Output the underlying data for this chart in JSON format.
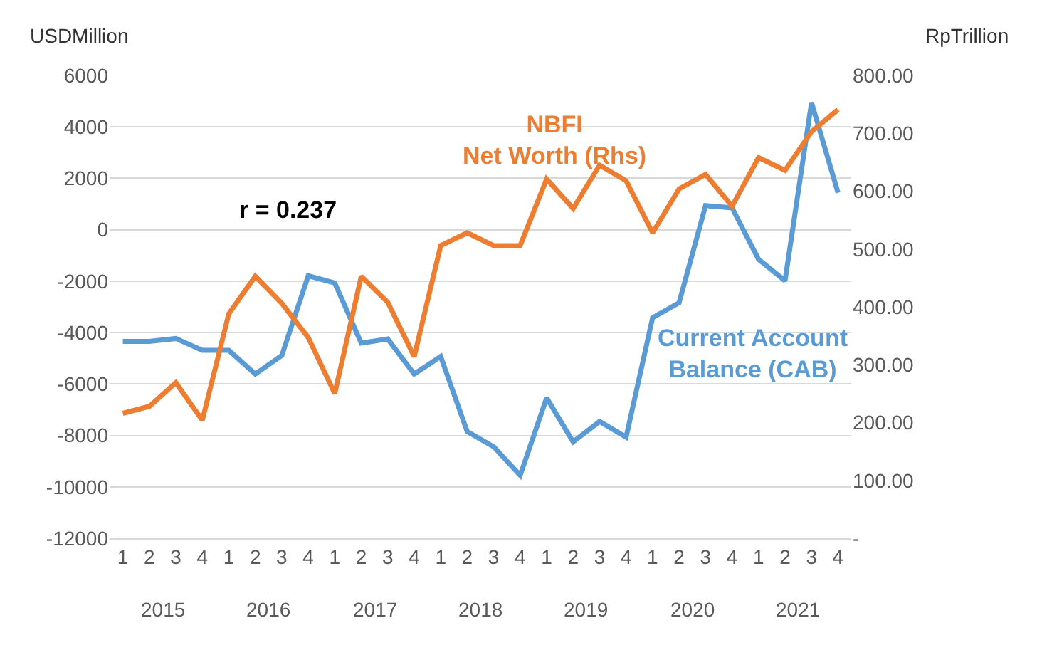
{
  "chart_data": {
    "type": "line",
    "ylabel": "USDMillion",
    "y2label": "RpTrillion",
    "categories": [
      "1",
      "2",
      "3",
      "4",
      "1",
      "2",
      "3",
      "4",
      "1",
      "2",
      "3",
      "4",
      "1",
      "2",
      "3",
      "4",
      "1",
      "2",
      "3",
      "4",
      "1",
      "2",
      "3",
      "4",
      "1",
      "2",
      "3",
      "4"
    ],
    "series": [
      {
        "name": "Current Account\nBalance (CAB)",
        "color": "#5b9bd5",
        "values": [
          -4340,
          -4340,
          -4230,
          -4690,
          -4690,
          -5610,
          -4890,
          -1790,
          -2070,
          -4410,
          -4250,
          -5610,
          -4930,
          -7850,
          -8440,
          -9550,
          -6540,
          -8250,
          -7460,
          -8070,
          -3420,
          -2840,
          940,
          850,
          -1150,
          -1980,
          4950,
          1440
        ]
      },
      {
        "name": "NBFI\nNet Worth (Rhs)",
        "color": "#ed7d31",
        "axis": "y2",
        "values": [
          216,
          228,
          269,
          204,
          388,
          453,
          406,
          347,
          250,
          453,
          408,
          314,
          506,
          528,
          506,
          506,
          621,
          570,
          645,
          618,
          528,
          604,
          629,
          574,
          658,
          636,
          703,
          741
        ]
      }
    ],
    "ylim": [
      -12000,
      6000
    ],
    "yticks": [
      -12000,
      -10000,
      -8000,
      -6000,
      -4000,
      -2000,
      0,
      2000,
      4000,
      6000
    ],
    "y2lim": [
      0,
      800
    ],
    "y2ticks": [
      {
        "value": 0,
        "label": "-"
      },
      {
        "value": 100,
        "label": "100.00"
      },
      {
        "value": 200,
        "label": "200.00"
      },
      {
        "value": 300,
        "label": "300.00"
      },
      {
        "value": 400,
        "label": "400.00"
      },
      {
        "value": 500,
        "label": "500.00"
      },
      {
        "value": 600,
        "label": "600.00"
      },
      {
        "value": 700,
        "label": "700.00"
      },
      {
        "value": 800,
        "label": "800.00"
      }
    ],
    "annotations": [
      "r = 0.237",
      "2015",
      "2016",
      "2017",
      "2018",
      "2019",
      "2020",
      "2021"
    ],
    "grid": "y",
    "legend": false,
    "marker": "none",
    "line_style": "solid"
  }
}
